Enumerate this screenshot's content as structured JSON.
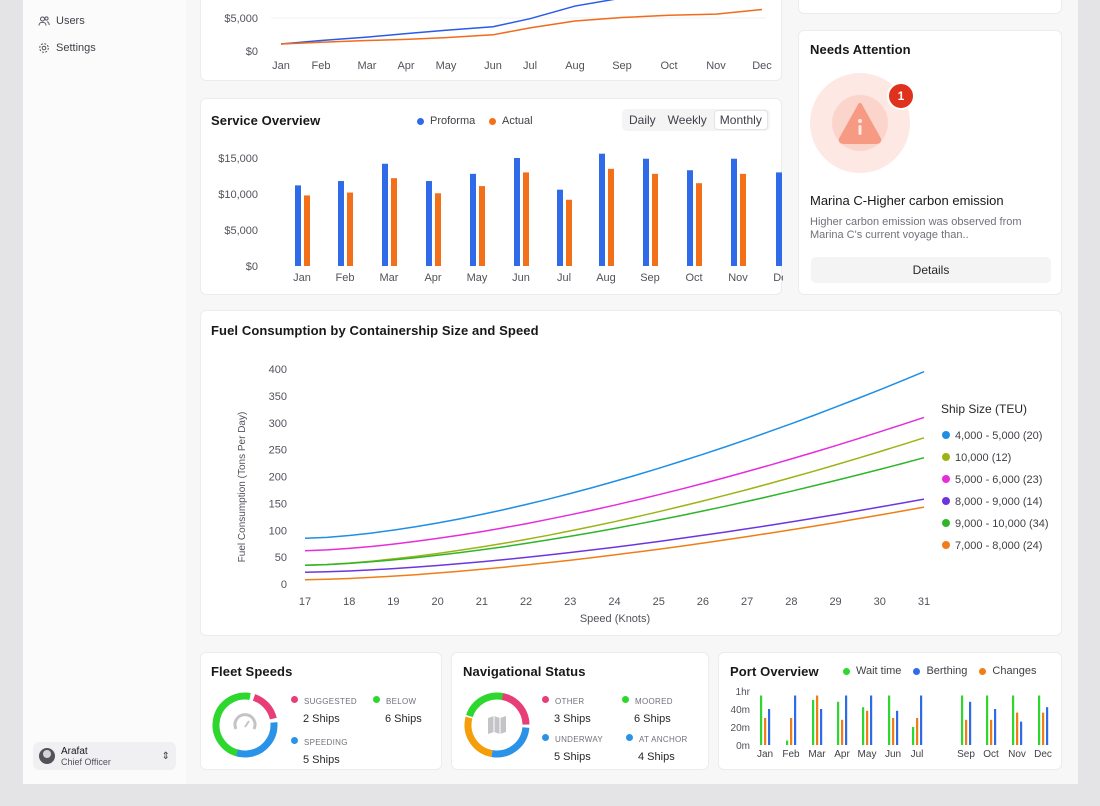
{
  "sidebar": {
    "items": [
      {
        "label": "Users",
        "icon": "users-icon"
      },
      {
        "label": "Settings",
        "icon": "gear-icon"
      }
    ],
    "user": {
      "name": "Arafat",
      "role": "Chief Officer"
    }
  },
  "top_chart": {
    "type": "line",
    "y_ticks": [
      "$5,000",
      "$0"
    ],
    "categories": [
      "Jan",
      "Feb",
      "Mar",
      "Apr",
      "May",
      "Jun",
      "Jul",
      "Aug",
      "Sep",
      "Oct",
      "Nov",
      "Dec"
    ],
    "series": [
      {
        "color": "#2a5ae8",
        "values": [
          0,
          3,
          6,
          9,
          12,
          15,
          22,
          33,
          40,
          42,
          45,
          48
        ]
      },
      {
        "color": "#f26a1b",
        "values": [
          0,
          1.5,
          3,
          4,
          5.5,
          8,
          14,
          20,
          23,
          25,
          26,
          30
        ]
      }
    ]
  },
  "service_overview": {
    "title": "Service Overview",
    "tabs": [
      "Daily",
      "Weekly",
      "Monthly"
    ],
    "active_tab": "Monthly",
    "chart_data": {
      "type": "bar",
      "categories": [
        "Jan",
        "Feb",
        "Mar",
        "Apr",
        "May",
        "Jun",
        "Jul",
        "Aug",
        "Sep",
        "Oct",
        "Nov",
        "Dec"
      ],
      "ylim": [
        0,
        15000
      ],
      "y_ticks": [
        "$15,000",
        "$10,000",
        "$5,000",
        "$0"
      ],
      "series": [
        {
          "name": "Proforma",
          "color": "#2f6be8",
          "values": [
            11200,
            11800,
            14200,
            11800,
            12800,
            15000,
            10600,
            15600,
            14900,
            13300,
            14900,
            13000
          ]
        },
        {
          "name": "Actual",
          "color": "#f27019",
          "values": [
            9800,
            10200,
            12200,
            10100,
            11100,
            13000,
            9200,
            13500,
            12800,
            11500,
            12800,
            11200
          ]
        }
      ]
    }
  },
  "needs_attention": {
    "title": "Needs Attention",
    "badge": "1",
    "alert_title": "Marina C-Higher carbon emission",
    "alert_body": "Higher carbon emission was observed from Marina C's current voyage than..",
    "button": "Details"
  },
  "fuel": {
    "title": "Fuel Consumption by Containership Size and Speed",
    "chart_data": {
      "type": "line",
      "xlabel": "Speed (Knots)",
      "ylabel": "Fuel Consumption (Tons Per Day)",
      "x": [
        17,
        18,
        19,
        20,
        21,
        22,
        23,
        24,
        25,
        26,
        27,
        28,
        29,
        30,
        31
      ],
      "ylim": [
        0,
        400
      ],
      "y_ticks": [
        0,
        50,
        100,
        150,
        200,
        250,
        300,
        350,
        400
      ],
      "legend_title": "Ship Size (TEU)",
      "series": [
        {
          "name": "4,000 - 5,000",
          "count": "(20)",
          "color": "#1f8fe6",
          "start": 85,
          "end": 395
        },
        {
          "name": "10,000",
          "count": "(12)",
          "color": "#9db315",
          "start": 35,
          "end": 272
        },
        {
          "name": "5,000 - 6,000",
          "count": "(23)",
          "color": "#e62ddb",
          "start": 62,
          "end": 310
        },
        {
          "name": "8,000 - 9,000",
          "count": "(14)",
          "color": "#6d35e0",
          "start": 22,
          "end": 158
        },
        {
          "name": "9,000 - 10,000",
          "count": "(34)",
          "color": "#2fb52a",
          "start": 35,
          "end": 235
        },
        {
          "name": "7,000 - 8,000",
          "count": "(24)",
          "color": "#f07d17",
          "start": 8,
          "end": 143
        }
      ]
    }
  },
  "fleet_speeds": {
    "title": "Fleet Speeds",
    "stats": [
      {
        "label": "SUGGESTED",
        "value": "2 Ships",
        "color": "#e83e78"
      },
      {
        "label": "BELOW",
        "value": "6 Ships",
        "color": "#2dd72d"
      },
      {
        "label": "SPEEDING",
        "value": "5 Ships",
        "color": "#2a93e8"
      }
    ]
  },
  "nav_status": {
    "title": "Navigational Status",
    "stats": [
      {
        "label": "OTHER",
        "value": "3 Ships",
        "color": "#e83e78"
      },
      {
        "label": "MOORED",
        "value": "6 Ships",
        "color": "#2dd72d"
      },
      {
        "label": "UNDERWAY",
        "value": "5 Ships",
        "color": "#2a93e8"
      },
      {
        "label": "AT ANCHOR",
        "value": "4 Ships",
        "color": "#2a93e8"
      }
    ]
  },
  "port_overview": {
    "title": "Port Overview",
    "legend": [
      {
        "name": "Wait time",
        "color": "#2dd72d"
      },
      {
        "name": "Berthing",
        "color": "#2f6be8"
      },
      {
        "name": "Changes",
        "color": "#f07d17"
      }
    ],
    "chart_data": {
      "type": "bar",
      "categories": [
        "Jan",
        "Feb",
        "Mar",
        "Apr",
        "May",
        "Jun",
        "Jul",
        "Sep",
        "Oct",
        "Nov",
        "Dec"
      ],
      "y_ticks": [
        "1hr",
        "40m",
        "20m",
        "0m"
      ],
      "ylim": [
        0,
        60
      ],
      "series": [
        {
          "name": "Wait time",
          "values": [
            55,
            5,
            50,
            48,
            42,
            55,
            20,
            55,
            55,
            55,
            55
          ]
        },
        {
          "name": "Changes",
          "values": [
            30,
            30,
            55,
            28,
            38,
            30,
            30,
            28,
            28,
            36,
            36
          ]
        },
        {
          "name": "Berthing",
          "values": [
            40,
            55,
            40,
            55,
            55,
            38,
            55,
            48,
            40,
            26,
            42
          ]
        }
      ]
    }
  }
}
